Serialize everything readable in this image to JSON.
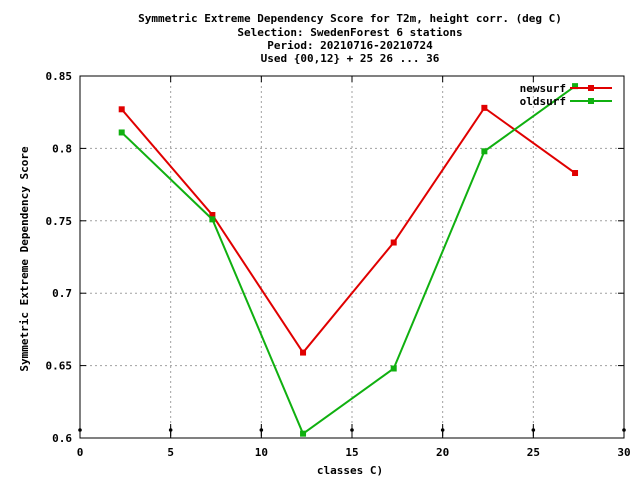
{
  "chart_data": {
    "type": "line",
    "title_lines": [
      "Symmetric Extreme Dependency Score  for T2m, height corr. (deg C)",
      "Selection: SwedenForest      6 stations",
      "Period: 20210716-20210724",
      "Used {00,12} + 25 26 ... 36"
    ],
    "xlabel": "classes C)",
    "ylabel": "Symmetric Extreme Dependency Score",
    "xlim": [
      0,
      30
    ],
    "ylim": [
      0.6,
      0.85
    ],
    "xticks": [
      0,
      5,
      10,
      15,
      20,
      25,
      30
    ],
    "yticks": [
      0.6,
      0.65,
      0.7,
      0.75,
      0.8,
      0.85
    ],
    "xtick_labels": [
      "0",
      "5",
      "10",
      "15",
      "20",
      "25",
      "30"
    ],
    "ytick_labels": [
      "0.6",
      "0.65",
      "0.7",
      "0.75",
      "0.8",
      "0.85"
    ],
    "grid": true,
    "legend_position": "top-right",
    "series": [
      {
        "name": "newsurf",
        "color": "#e00000",
        "x": [
          2.3,
          7.3,
          12.3,
          17.3,
          22.3,
          27.3
        ],
        "y": [
          0.827,
          0.754,
          0.659,
          0.735,
          0.828,
          0.783
        ]
      },
      {
        "name": "oldsurf",
        "color": "#10b010",
        "x": [
          2.3,
          7.3,
          12.3,
          17.3,
          22.3,
          27.3
        ],
        "y": [
          0.811,
          0.751,
          0.603,
          0.648,
          0.798,
          0.843
        ]
      }
    ]
  }
}
